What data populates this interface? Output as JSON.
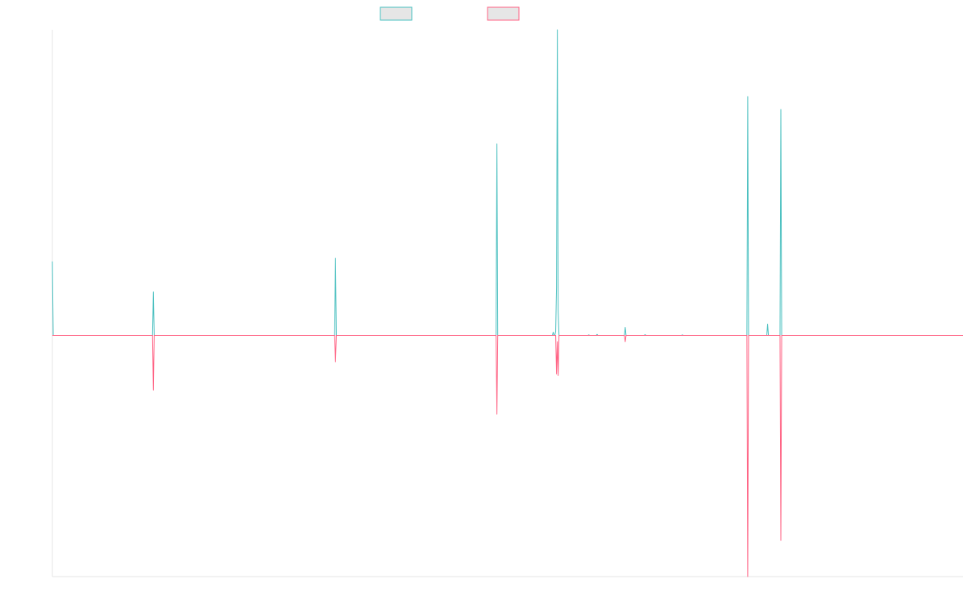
{
  "chart_data": {
    "type": "line",
    "title": "",
    "xlabel": "",
    "ylabel": "",
    "grid": false,
    "legend_position": "top-center",
    "ylim": [
      -300,
      380
    ],
    "x": [
      0,
      1,
      2,
      120,
      121,
      122,
      123,
      124,
      340,
      341,
      342,
      343,
      344,
      535,
      536,
      537,
      538,
      539,
      604,
      605,
      606,
      607,
      608,
      609,
      610,
      611,
      612,
      613,
      614,
      615,
      647,
      648,
      649,
      657,
      658,
      659,
      690,
      691,
      692,
      693,
      694,
      715,
      716,
      717,
      760,
      761,
      762,
      838,
      839,
      840,
      841,
      842,
      862,
      863,
      864,
      865,
      866,
      878,
      879,
      880,
      881,
      882,
      1100
    ],
    "series": [
      {
        "name": "",
        "color": "#4bc0c0",
        "values": [
          92,
          0,
          0,
          0,
          0,
          54,
          0,
          0,
          0,
          0,
          96,
          0,
          0,
          0,
          0,
          238,
          0,
          0,
          0,
          4,
          0,
          0,
          5,
          60,
          380,
          30,
          0,
          0,
          0,
          0,
          0,
          0.6,
          0,
          0,
          1.2,
          0,
          0,
          0,
          10,
          0,
          0,
          0,
          1,
          0,
          0,
          0.6,
          0,
          0,
          0,
          297,
          0,
          0,
          0,
          0,
          14,
          0,
          0,
          0,
          0,
          281,
          0,
          0,
          0
        ]
      },
      {
        "name": "",
        "color": "#ff6384",
        "values": [
          0,
          0,
          0,
          0,
          0,
          -68,
          0,
          0,
          0,
          0,
          -33,
          0,
          0,
          0,
          0,
          -98,
          0,
          0,
          0,
          0,
          0,
          0,
          0,
          -48,
          -8,
          -50,
          0,
          0,
          0,
          0,
          0,
          0,
          0,
          0,
          0,
          0,
          0,
          0,
          -8,
          0,
          0,
          0,
          0,
          0,
          0,
          0,
          0,
          0,
          0,
          -300,
          0,
          0,
          0,
          0,
          0,
          0,
          0,
          0,
          0,
          -255,
          0,
          0,
          0
        ]
      }
    ]
  }
}
